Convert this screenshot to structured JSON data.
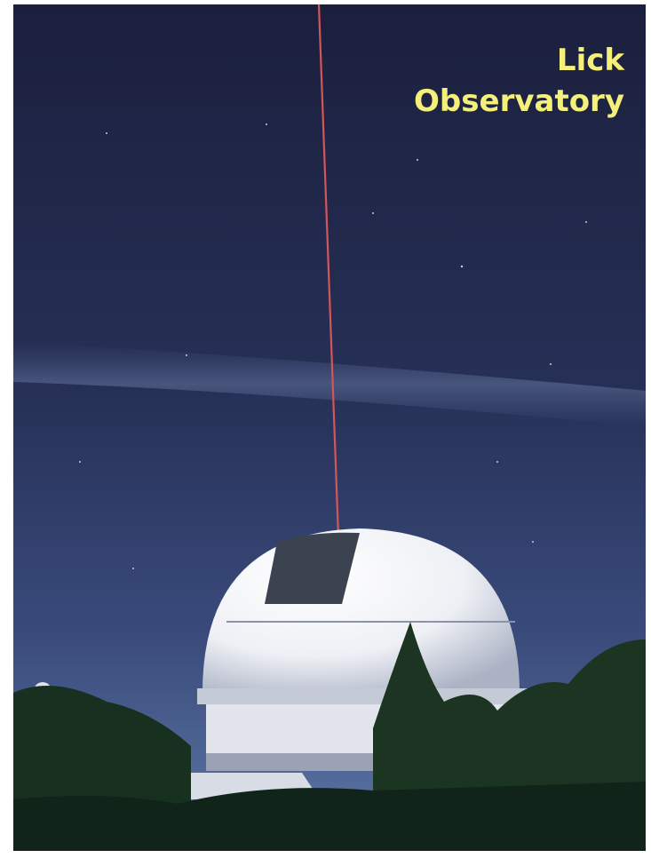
{
  "overlay_text": {
    "lines": [
      "Lick",
      "Observatory"
    ]
  }
}
